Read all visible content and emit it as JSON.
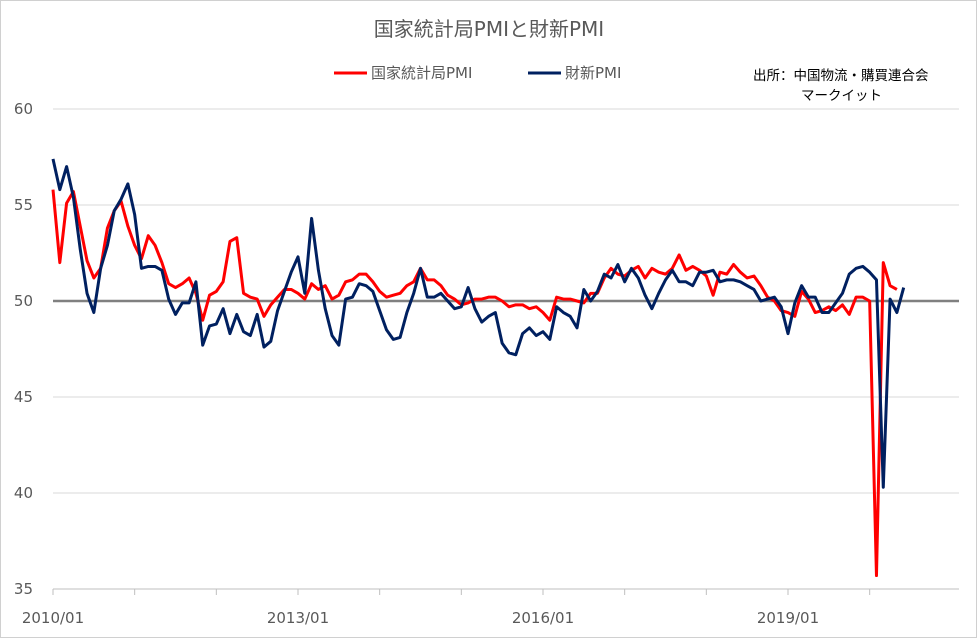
{
  "chart_data": {
    "type": "line",
    "title": "国家統計局PMIと財新PMI",
    "source_line1": "出所：中国物流・購買連合会",
    "source_line2": "マークイット",
    "ylim": [
      35,
      60
    ],
    "y_ticks": [
      "35",
      "40",
      "45",
      "50",
      "55",
      "60"
    ],
    "x_ticks": [
      "2010/01",
      "2013/01",
      "2016/01",
      "2019/01"
    ],
    "x_start": "2010/01",
    "reference_line": 50,
    "grid": true,
    "legend_position": "top",
    "series": [
      {
        "name": "国家統計局PMI",
        "color": "#ff0000",
        "values": [
          55.8,
          52.0,
          55.1,
          55.7,
          53.9,
          52.1,
          51.2,
          51.7,
          53.8,
          54.7,
          55.2,
          53.9,
          52.9,
          52.2,
          53.4,
          52.9,
          52.0,
          50.9,
          50.7,
          50.9,
          51.2,
          50.4,
          49.0,
          50.3,
          50.5,
          51.0,
          53.1,
          53.3,
          50.4,
          50.2,
          50.1,
          49.2,
          49.8,
          50.2,
          50.6,
          50.6,
          50.4,
          50.1,
          50.9,
          50.6,
          50.8,
          50.1,
          50.3,
          51.0,
          51.1,
          51.4,
          51.4,
          51.0,
          50.5,
          50.2,
          50.3,
          50.4,
          50.8,
          51.0,
          51.7,
          51.1,
          51.1,
          50.8,
          50.3,
          50.1,
          49.8,
          49.9,
          50.1,
          50.1,
          50.2,
          50.2,
          50.0,
          49.7,
          49.8,
          49.8,
          49.6,
          49.7,
          49.4,
          49.0,
          50.2,
          50.1,
          50.1,
          50.0,
          49.9,
          50.4,
          50.4,
          51.2,
          51.7,
          51.4,
          51.3,
          51.6,
          51.8,
          51.2,
          51.7,
          51.5,
          51.4,
          51.7,
          52.4,
          51.6,
          51.8,
          51.6,
          51.3,
          50.3,
          51.5,
          51.4,
          51.9,
          51.5,
          51.2,
          51.3,
          50.8,
          50.2,
          50.0,
          49.5,
          49.4,
          49.2,
          50.5,
          50.1,
          49.4,
          49.5,
          49.7,
          49.5,
          49.8,
          49.3,
          50.2,
          50.2,
          50.0,
          35.7,
          52.0,
          50.8,
          50.6
        ],
        "last_value_label": ""
      },
      {
        "name": "財新PMI",
        "color": "#002060",
        "values": [
          57.4,
          55.8,
          57.0,
          55.4,
          52.7,
          50.4,
          49.4,
          51.7,
          52.9,
          54.7,
          55.3,
          56.1,
          54.5,
          51.7,
          51.8,
          51.8,
          51.6,
          50.1,
          49.3,
          49.9,
          49.9,
          51.0,
          47.7,
          48.7,
          48.8,
          49.6,
          48.3,
          49.3,
          48.4,
          48.2,
          49.3,
          47.6,
          47.9,
          49.5,
          50.5,
          51.5,
          52.3,
          50.4,
          54.3,
          51.6,
          49.6,
          48.2,
          47.7,
          50.1,
          50.2,
          50.9,
          50.8,
          50.5,
          49.5,
          48.5,
          48.0,
          48.1,
          49.4,
          50.4,
          51.7,
          50.2,
          50.2,
          50.4,
          50.0,
          49.6,
          49.7,
          50.7,
          49.6,
          48.9,
          49.2,
          49.4,
          47.8,
          47.3,
          47.2,
          48.3,
          48.6,
          48.2,
          48.4,
          48.0,
          49.7,
          49.4,
          49.2,
          48.6,
          50.6,
          50.0,
          50.5,
          51.4,
          51.2,
          51.9,
          51.0,
          51.7,
          51.2,
          50.3,
          49.6,
          50.4,
          51.1,
          51.6,
          51.0,
          51.0,
          50.8,
          51.5,
          51.5,
          51.6,
          51.0,
          51.1,
          51.1,
          51.0,
          50.8,
          50.6,
          50.0,
          50.1,
          50.2,
          49.7,
          48.3,
          49.9,
          50.8,
          50.2,
          50.2,
          49.4,
          49.4,
          49.9,
          50.4,
          51.4,
          51.7,
          51.8,
          51.5,
          51.1,
          40.3,
          50.1,
          49.4,
          50.7
        ]
      }
    ]
  }
}
